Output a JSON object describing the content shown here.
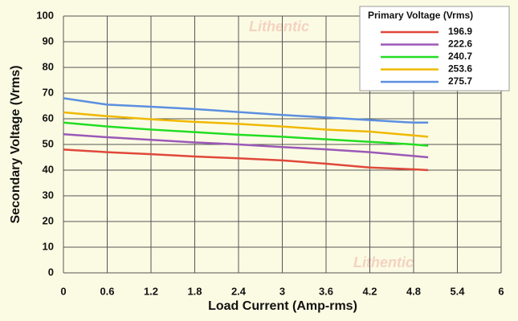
{
  "chart_data": {
    "type": "line",
    "x_label": "Load Current (Amp-rms)",
    "y_label": "Secondary Voltage (Vrms)",
    "legend_title": "Primary Voltage (Vrms)",
    "watermark": "Lithentic",
    "x": [
      0,
      0.6,
      1.2,
      1.8,
      2.4,
      3,
      3.6,
      4.2,
      4.8,
      5
    ],
    "series": [
      {
        "name": "196.9",
        "color": "#e0483a",
        "values": [
          48,
          47,
          46.2,
          45.3,
          44.6,
          43.8,
          42.5,
          41,
          40.3,
          40
        ]
      },
      {
        "name": "222.6",
        "color": "#9b59b6",
        "values": [
          54,
          52.8,
          51.8,
          50.8,
          50,
          49,
          48.1,
          47,
          45.5,
          45
        ]
      },
      {
        "name": "240.7",
        "color": "#22dd22",
        "values": [
          58.5,
          57,
          55.8,
          54.8,
          53.8,
          53,
          52,
          51,
          50,
          49.5
        ]
      },
      {
        "name": "253.6",
        "color": "#f0b800",
        "values": [
          62.5,
          61,
          59.8,
          58.8,
          58,
          57,
          55.8,
          55,
          53.5,
          53
        ]
      },
      {
        "name": "275.7",
        "color": "#5b8fe0",
        "values": [
          68,
          65.5,
          64.7,
          63.8,
          62.6,
          61.5,
          60.5,
          59.5,
          58.5,
          58.5
        ]
      }
    ],
    "xlim": [
      0,
      6
    ],
    "xticks": [
      0,
      0.6,
      1.2,
      1.8,
      2.4,
      3,
      3.6,
      4.2,
      4.8,
      5.4,
      6
    ],
    "ylim": [
      0,
      100
    ],
    "yticks": [
      0,
      10,
      20,
      30,
      40,
      50,
      60,
      70,
      80,
      90,
      100
    ],
    "grid": true,
    "legend": "top-right"
  }
}
